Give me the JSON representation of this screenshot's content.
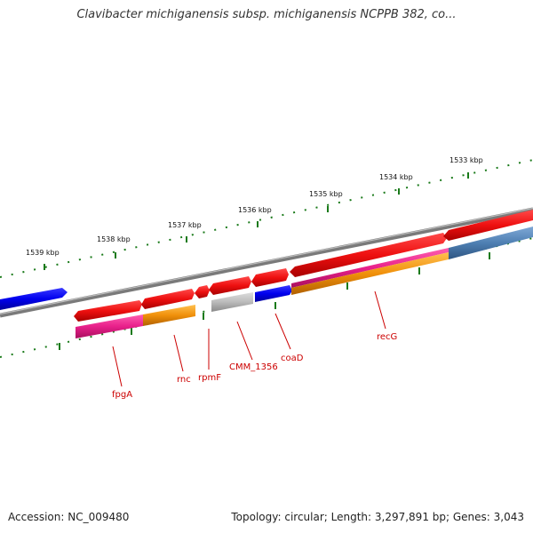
{
  "header": {
    "title": "Clavibacter michiganensis subsp. michiganensis NCPPB 382, co..."
  },
  "footer": {
    "accession": "Accession: NC_009480",
    "summary": "Topology: circular; Length: 3,297,891 bp; Genes: 3,043"
  },
  "scale": {
    "ticks": [
      "1539 kbp",
      "1538 kbp",
      "1537 kbp",
      "1536 kbp",
      "1535 kbp",
      "1534 kbp",
      "1533 kbp"
    ]
  },
  "genes": [
    {
      "name": "fpgA"
    },
    {
      "name": "rnc"
    },
    {
      "name": "rpmF"
    },
    {
      "name": "CMM_1356"
    },
    {
      "name": "coaD"
    },
    {
      "name": "recG"
    }
  ],
  "colors": {
    "forward_gene": "#ee1111",
    "reverse_gene": "#0000ee",
    "hypothetical": "#bbbbbb",
    "cog_magenta": "#e8208a",
    "cog_orange": "#f0900a",
    "cog_steelblue": "#4e7fb2",
    "backbone": "#7a7a7a",
    "tick": "#1a7a1a",
    "label": "#cc0000"
  }
}
